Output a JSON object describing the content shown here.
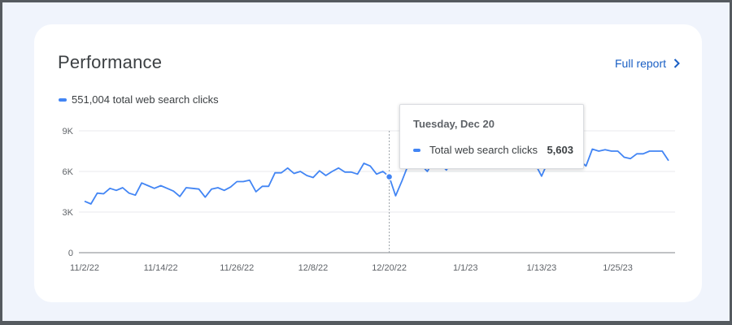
{
  "card": {
    "title": "Performance",
    "full_report_label": "Full report",
    "chevron_icon": "chevron-right-icon",
    "legend_label": "551,004 total web search clicks"
  },
  "tooltip": {
    "date": "Tuesday, Dec 20",
    "series_label": "Total web search clicks",
    "value": "5,603"
  },
  "colors": {
    "series": "#4285f4",
    "accent": "#1a5fc4",
    "page_bg": "#f0f4fc"
  },
  "chart_data": {
    "type": "line",
    "title": "",
    "xlabel": "",
    "ylabel": "",
    "ylim": [
      0,
      9000
    ],
    "yticks": [
      0,
      3000,
      6000,
      9000
    ],
    "ytick_labels": [
      "0",
      "3K",
      "6K",
      "9K"
    ],
    "xtick_labels": [
      "11/2/22",
      "11/14/22",
      "11/26/22",
      "12/8/22",
      "12/20/22",
      "1/1/23",
      "1/13/23",
      "1/25/23"
    ],
    "xtick_indices": [
      0,
      12,
      24,
      36,
      48,
      60,
      72,
      84
    ],
    "grid": true,
    "legend": "top-left",
    "highlight_index": 48,
    "series": [
      {
        "name": "551,004 total web search clicks",
        "values": [
          3800,
          3600,
          4400,
          4350,
          4750,
          4600,
          4800,
          4400,
          4250,
          5150,
          4950,
          4750,
          4950,
          4750,
          4550,
          4150,
          4800,
          4750,
          4700,
          4100,
          4700,
          4800,
          4600,
          4850,
          5250,
          5250,
          5350,
          4500,
          4900,
          4900,
          5900,
          5900,
          6250,
          5850,
          6000,
          5700,
          5550,
          6050,
          5700,
          6000,
          6250,
          5950,
          5950,
          5800,
          6600,
          6400,
          5800,
          6000,
          5603,
          4200,
          5300,
          6500,
          6700,
          6500,
          6000,
          6800,
          6600,
          6100,
          6800,
          6950,
          7000,
          6800,
          6900,
          6900,
          6850,
          6800,
          6900,
          7000,
          6700,
          6900,
          6900,
          6550,
          5650,
          6700,
          6900,
          7000,
          6800,
          6900,
          6800,
          6400,
          7650,
          7500,
          7600,
          7500,
          7500,
          7050,
          6950,
          7300,
          7300,
          7500,
          7500,
          7500,
          6800
        ]
      }
    ]
  }
}
